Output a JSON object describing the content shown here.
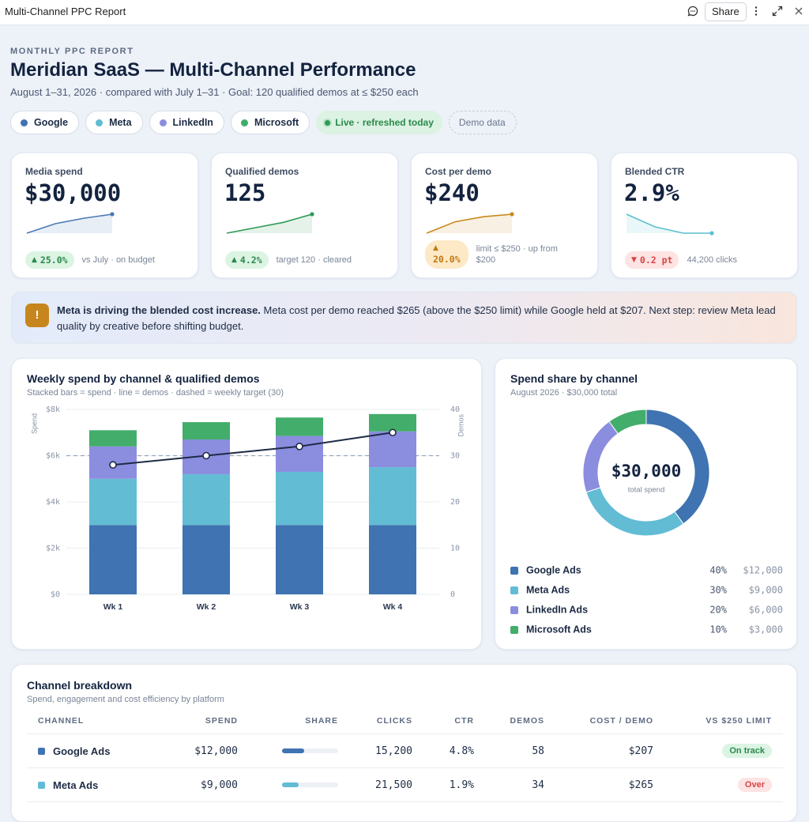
{
  "window": {
    "title": "Multi-Channel PPC Report",
    "share": "Share"
  },
  "header": {
    "eyebrow": "MONTHLY PPC REPORT",
    "title": "Meridian SaaS — Multi-Channel Performance",
    "subtitle": "August 1–31, 2026 · compared with July 1–31 · Goal: 120 qualified demos at ≤ $250 each"
  },
  "chips": [
    {
      "label": "Google",
      "color": "#3f73b1"
    },
    {
      "label": "Meta",
      "color": "#5fbcd3"
    },
    {
      "label": "LinkedIn",
      "color": "#8b8ddf"
    },
    {
      "label": "Microsoft",
      "color": "#3fae6a"
    }
  ],
  "status": {
    "live": "Live · refreshed today",
    "demo": "Demo data"
  },
  "kpis": [
    {
      "label": "Media spend",
      "value": "$30,000",
      "arrow": "▲",
      "delta": "25.0%",
      "note": "vs July · on budget",
      "delta_color": "#2a8a4b",
      "delta_bg": "#dcf4e3"
    },
    {
      "label": "Qualified demos",
      "value": "125",
      "arrow": "▲",
      "delta": "4.2%",
      "note": "target 120 · cleared",
      "delta_color": "#2a8a4b",
      "delta_bg": "#dcf4e3"
    },
    {
      "label": "Cost per demo",
      "value": "$240",
      "arrow": "▲",
      "delta": "20.0%",
      "note": "limit ≤ $250 · up from $200",
      "delta_color": "#c0790f",
      "delta_bg": "#fde9c6"
    },
    {
      "label": "Blended CTR",
      "value": "2.9%",
      "arrow": "▼",
      "delta": "0.2 pt",
      "note": "44,200 clicks",
      "delta_color": "#d64545",
      "delta_bg": "#fde3e3"
    }
  ],
  "callout": {
    "headline": "Meta is driving the blended cost increase.",
    "body": "Meta cost per demo reached $265 (above the $250 limit) while Google held at $207. Next step: review Meta lead quality by creative before shifting budget."
  },
  "chart_data": [
    {
      "type": "line",
      "values": [
        7100,
        7450,
        7650,
        7800
      ],
      "color": "#4a78b5"
    },
    {
      "type": "line",
      "values": [
        28,
        30,
        32,
        35
      ],
      "color": "#2f9a55"
    },
    {
      "type": "line",
      "values": [
        195,
        222,
        234,
        240
      ],
      "color": "#c98a1c"
    },
    {
      "type": "line",
      "values": [
        3.8,
        3.2,
        2.9,
        2.9
      ],
      "color": "#5bbfd0"
    },
    {
      "type": "bar",
      "stacked": true,
      "title": "Weekly spend by channel & qualified demos",
      "subtitle": "Stacked bars = spend · line = demos · dashed = weekly target (30)",
      "y_label": "Spend",
      "y2_label": "Demos",
      "categories": [
        "Wk 1",
        "Wk 2",
        "Wk 3",
        "Wk 4"
      ],
      "series": [
        {
          "name": "Google",
          "color": "#3f73b1",
          "values": [
            3000,
            3000,
            3000,
            3000
          ]
        },
        {
          "name": "Meta",
          "color": "#62bcd4",
          "values": [
            2000,
            2200,
            2300,
            2500
          ]
        },
        {
          "name": "LinkedIn",
          "color": "#8b8ddf",
          "values": [
            1400,
            1500,
            1550,
            1550
          ]
        },
        {
          "name": "Microsoft",
          "color": "#43ad6b",
          "values": [
            700,
            750,
            800,
            750
          ]
        },
        {
          "name": "Demos",
          "type": "line",
          "axis": "y2",
          "color": "#1e2b45",
          "values": [
            28,
            30,
            32,
            35
          ]
        }
      ],
      "target": 30,
      "target_color": "#9aa6b8",
      "ylim": [
        0,
        8000
      ],
      "yticks": [
        {
          "value": 0,
          "label": "$0"
        },
        {
          "value": 2000,
          "label": "$2k"
        },
        {
          "value": 4000,
          "label": "$4k"
        },
        {
          "value": 6000,
          "label": "$6k"
        },
        {
          "value": 8000,
          "label": "$8k"
        }
      ],
      "y2lim": [
        0,
        40
      ],
      "y2ticks": [
        0,
        10,
        20,
        30,
        40
      ],
      "grid": true
    },
    {
      "type": "pie",
      "donut": true,
      "title": "Spend share by channel",
      "subtitle": "August 2026 · $30,000 total",
      "center_value": "$30,000",
      "center_label": "total spend",
      "categories": [
        "Google Ads",
        "Meta Ads",
        "LinkedIn Ads",
        "Microsoft Ads"
      ],
      "values": [
        40,
        30,
        20,
        10
      ],
      "value_labels": [
        "40%",
        "30%",
        "20%",
        "10%"
      ],
      "amounts": [
        "$12,000",
        "$9,000",
        "$6,000",
        "$3,000"
      ],
      "colors": [
        "#3f73b1",
        "#62bcd4",
        "#8b8ddf",
        "#43ad6b"
      ]
    }
  ],
  "table": {
    "title": "Channel breakdown",
    "subtitle": "Spend, engagement and cost efficiency by platform",
    "columns": [
      "CHANNEL",
      "SPEND",
      "SHARE",
      "CLICKS",
      "CTR",
      "DEMOS",
      "COST / DEMO",
      "VS $250 LIMIT"
    ],
    "rows": [
      {
        "channel": "Google Ads",
        "color": "#3f73b1",
        "spend": "$12,000",
        "share": 40,
        "clicks": "15,200",
        "ctr": "4.8%",
        "demos": 58,
        "cost": "$207",
        "status": "On track",
        "status_color": "#2a8a4b",
        "status_bg": "#dcf4e3"
      },
      {
        "channel": "Meta Ads",
        "color": "#62bcd4",
        "spend": "$9,000",
        "share": 30,
        "clicks": "21,500",
        "ctr": "1.9%",
        "demos": 34,
        "cost": "$265",
        "status": "Over",
        "status_color": "#d64545",
        "status_bg": "#fde3e3"
      }
    ]
  }
}
